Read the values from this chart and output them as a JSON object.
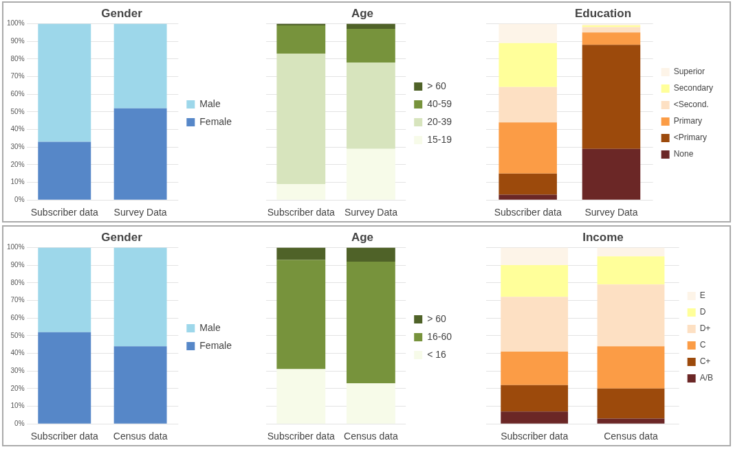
{
  "chart_data": [
    {
      "type": "bar",
      "title": "Gender",
      "categories": [
        "Subscriber data",
        "Survey Data"
      ],
      "stacked": true,
      "ylim": [
        0,
        100
      ],
      "yticks": [
        {
          "value": 0,
          "label": "0%"
        },
        {
          "value": 10,
          "label": "10%"
        },
        {
          "value": 20,
          "label": "20%"
        },
        {
          "value": 30,
          "label": "30%"
        },
        {
          "value": 40,
          "label": "40%"
        },
        {
          "value": 50,
          "label": "50%"
        },
        {
          "value": 60,
          "label": "60%"
        },
        {
          "value": 70,
          "label": "70%"
        },
        {
          "value": 80,
          "label": "80%"
        },
        {
          "value": 90,
          "label": "90%"
        },
        {
          "value": 100,
          "label": "100%"
        }
      ],
      "grid": "y",
      "legend": "right",
      "series": [
        {
          "name": "Female",
          "color": "#5687c8",
          "values": [
            33,
            52
          ]
        },
        {
          "name": "Male",
          "color": "#9dd7ea",
          "values": [
            67,
            48
          ]
        }
      ]
    },
    {
      "type": "bar",
      "title": "Age",
      "categories": [
        "Subscriber data",
        "Survey Data"
      ],
      "stacked": true,
      "ylim": [
        0,
        100
      ],
      "yticks": [
        0,
        10,
        20,
        30,
        40,
        50,
        60,
        70,
        80,
        90,
        100
      ],
      "tick_labels": "x",
      "grid": "y",
      "legend": "right",
      "series": [
        {
          "name": "15-19",
          "color": "#f7fbe9",
          "values": [
            9,
            29
          ]
        },
        {
          "name": "20-39",
          "color": "#d7e4bd",
          "values": [
            74,
            49
          ]
        },
        {
          "name": "40-59",
          "color": "#77933c",
          "values": [
            16,
            19
          ]
        },
        {
          "name": "> 60",
          "color": "#4f6228",
          "values": [
            1,
            3
          ]
        }
      ]
    },
    {
      "type": "bar",
      "title": "Education",
      "categories": [
        "Subscriber data",
        "Survey Data"
      ],
      "stacked": true,
      "ylim": [
        0,
        100
      ],
      "yticks": [
        0,
        10,
        20,
        30,
        40,
        50,
        60,
        70,
        80,
        90,
        100
      ],
      "tick_labels": "x",
      "grid": "y",
      "legend": "right",
      "series": [
        {
          "name": "None",
          "color": "#6b2726",
          "values": [
            3,
            29
          ]
        },
        {
          "name": "<Primary",
          "color": "#9c4a0c",
          "values": [
            12,
            59
          ]
        },
        {
          "name": "Primary",
          "color": "#fb9c46",
          "values": [
            29,
            7
          ]
        },
        {
          "name": "<Second.",
          "color": "#fde0c3",
          "values": [
            20,
            3
          ]
        },
        {
          "name": "Secondary",
          "color": "#ffff9a",
          "values": [
            25,
            1
          ]
        },
        {
          "name": "Superior",
          "color": "#fdf4e8",
          "values": [
            11,
            1
          ]
        }
      ]
    },
    {
      "type": "bar",
      "title": "Gender",
      "categories": [
        "Subscriber data",
        "Census data"
      ],
      "stacked": true,
      "ylim": [
        0,
        100
      ],
      "yticks": [
        {
          "value": 0,
          "label": "0%"
        },
        {
          "value": 10,
          "label": "10%"
        },
        {
          "value": 20,
          "label": "20%"
        },
        {
          "value": 30,
          "label": "30%"
        },
        {
          "value": 40,
          "label": "40%"
        },
        {
          "value": 50,
          "label": "50%"
        },
        {
          "value": 60,
          "label": "60%"
        },
        {
          "value": 70,
          "label": "70%"
        },
        {
          "value": 80,
          "label": "80%"
        },
        {
          "value": 90,
          "label": "90%"
        },
        {
          "value": 100,
          "label": "100%"
        }
      ],
      "grid": "y",
      "legend": "right",
      "series": [
        {
          "name": "Female",
          "color": "#5687c8",
          "values": [
            52,
            44
          ]
        },
        {
          "name": "Male",
          "color": "#9dd7ea",
          "values": [
            48,
            56
          ]
        }
      ]
    },
    {
      "type": "bar",
      "title": "Age",
      "categories": [
        "Subscriber data",
        "Census data"
      ],
      "stacked": true,
      "ylim": [
        0,
        100
      ],
      "yticks": [
        0,
        10,
        20,
        30,
        40,
        50,
        60,
        70,
        80,
        90,
        100
      ],
      "tick_labels": "x",
      "grid": "y",
      "legend": "right",
      "series": [
        {
          "name": "< 16",
          "color": "#f7fbe9",
          "values": [
            31,
            23
          ]
        },
        {
          "name": "16-60",
          "color": "#77933c",
          "values": [
            62,
            69
          ]
        },
        {
          "name": "> 60",
          "color": "#4f6228",
          "values": [
            7,
            8
          ]
        }
      ]
    },
    {
      "type": "bar",
      "title": "Income",
      "categories": [
        "Subscriber data",
        "Census data"
      ],
      "stacked": true,
      "ylim": [
        0,
        100
      ],
      "yticks": [
        0,
        10,
        20,
        30,
        40,
        50,
        60,
        70,
        80,
        90,
        100
      ],
      "tick_labels": "x",
      "grid": "y",
      "legend": "right",
      "series": [
        {
          "name": "A/B",
          "color": "#6b2726",
          "values": [
            7,
            3
          ]
        },
        {
          "name": "C+",
          "color": "#9c4a0c",
          "values": [
            15,
            17
          ]
        },
        {
          "name": "C",
          "color": "#fb9c46",
          "values": [
            19,
            24
          ]
        },
        {
          "name": "D+",
          "color": "#fde0c3",
          "values": [
            31,
            35
          ]
        },
        {
          "name": "D",
          "color": "#ffff9a",
          "values": [
            18,
            16
          ]
        },
        {
          "name": "E",
          "color": "#fdf4e8",
          "values": [
            10,
            5
          ]
        }
      ]
    }
  ]
}
